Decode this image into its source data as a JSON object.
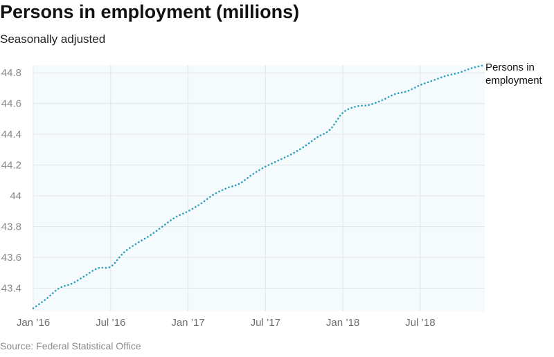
{
  "chart_data": {
    "type": "line",
    "title": "Persons in employment (millions)",
    "subtitle": "Seasonally adjusted",
    "source": "Source: Federal Statistical Office",
    "xlabel": "",
    "ylabel": "",
    "x_ticks": [
      "Jan ’16",
      "Jul ’16",
      "Jan ’17",
      "Jul ’17",
      "Jan ’18",
      "Jul ’18"
    ],
    "y_ticks": [
      "43.4",
      "43.6",
      "43.8",
      "44",
      "44.2",
      "44.4",
      "44.6",
      "44.8"
    ],
    "ylim": [
      43.25,
      44.85
    ],
    "x_range": [
      "2016-01",
      "2018-12"
    ],
    "grid": true,
    "series": [
      {
        "name": "Persons in employment",
        "label_lines": [
          "Persons in",
          "employment"
        ],
        "color": "#2a9fc0",
        "x": [
          "2016-01",
          "2016-02",
          "2016-03",
          "2016-04",
          "2016-05",
          "2016-06",
          "2016-07",
          "2016-08",
          "2016-09",
          "2016-10",
          "2016-11",
          "2016-12",
          "2017-01",
          "2017-02",
          "2017-03",
          "2017-04",
          "2017-05",
          "2017-06",
          "2017-07",
          "2017-08",
          "2017-09",
          "2017-10",
          "2017-11",
          "2017-12",
          "2018-01",
          "2018-02",
          "2018-03",
          "2018-04",
          "2018-05",
          "2018-06",
          "2018-07",
          "2018-08",
          "2018-09",
          "2018-10",
          "2018-11",
          "2018-12"
        ],
        "values": [
          43.27,
          43.33,
          43.4,
          43.43,
          43.48,
          43.53,
          43.54,
          43.63,
          43.69,
          43.74,
          43.8,
          43.86,
          43.9,
          43.95,
          44.01,
          44.05,
          44.08,
          44.14,
          44.19,
          44.23,
          44.27,
          44.32,
          44.38,
          44.43,
          44.54,
          44.58,
          44.59,
          44.62,
          44.66,
          44.68,
          44.72,
          44.75,
          44.78,
          44.8,
          44.83,
          44.85
        ]
      }
    ]
  }
}
